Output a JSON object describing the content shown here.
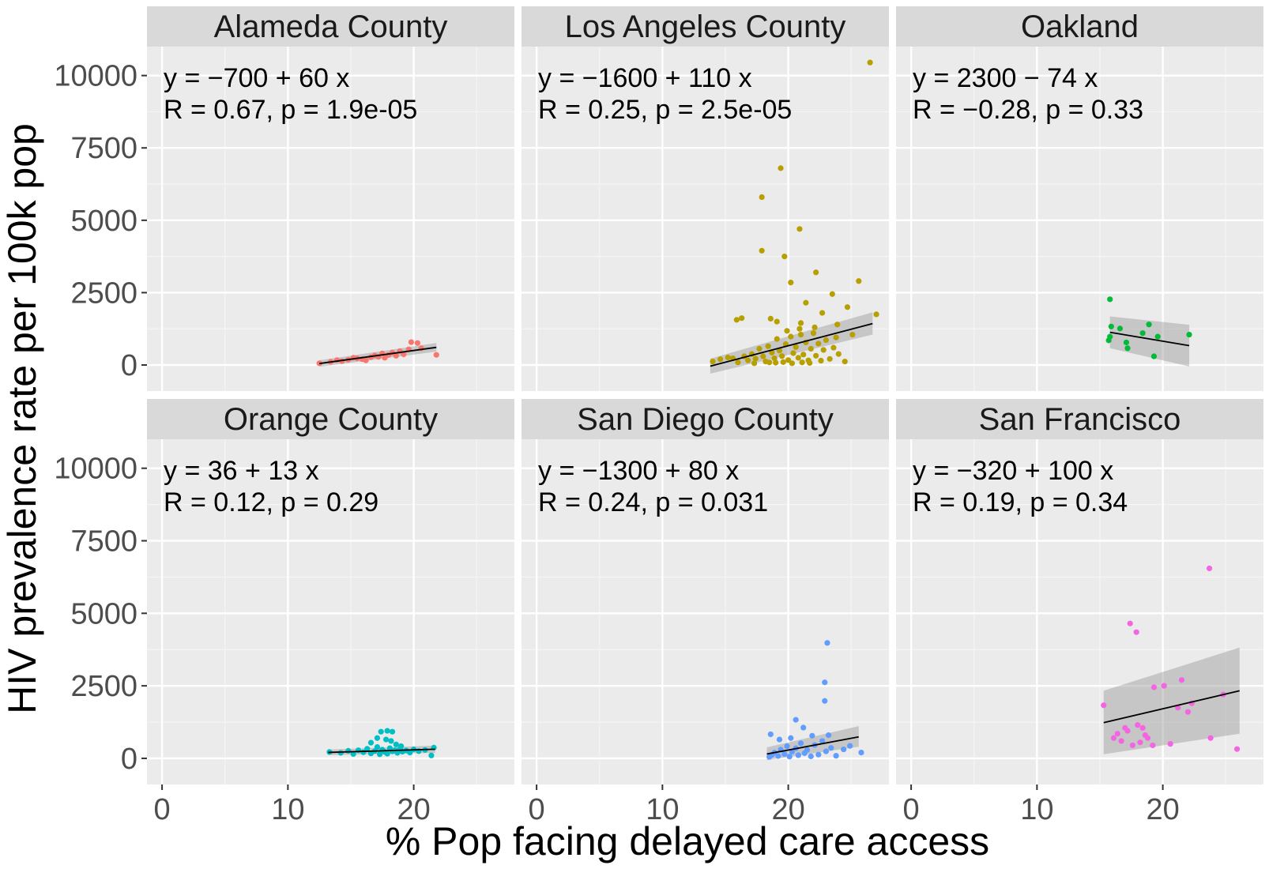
{
  "chart_data": {
    "type": "scatter",
    "xlabel": "% Pop facing delayed care access",
    "ylabel": "HIV prevalence rate per 100k pop",
    "xlim": [
      -1.2,
      28
    ],
    "ylim": [
      -900,
      11000
    ],
    "x_ticks": [
      0,
      10,
      20
    ],
    "y_ticks": [
      0,
      2500,
      5000,
      7500,
      10000
    ],
    "grid": true,
    "panels": [
      {
        "title": "Alameda County",
        "color": "#F8766D",
        "eq_line": "y = −700 + 60 x",
        "stat_line": "R = 0.67, p = 1.9e-05",
        "fit": {
          "x0": 12.5,
          "x1": 21.8,
          "y0": 50,
          "y1": 610
        },
        "band": {
          "lower0": -60,
          "lower1": 460,
          "upper0": 160,
          "upper1": 760
        },
        "points": [
          [
            12.5,
            60
          ],
          [
            13.4,
            110
          ],
          [
            13.9,
            170
          ],
          [
            14.3,
            130
          ],
          [
            14.8,
            180
          ],
          [
            15.2,
            250
          ],
          [
            15.5,
            230
          ],
          [
            15.9,
            200
          ],
          [
            16.2,
            160
          ],
          [
            16.6,
            270
          ],
          [
            16.9,
            330
          ],
          [
            17.2,
            280
          ],
          [
            17.5,
            400
          ],
          [
            17.7,
            250
          ],
          [
            18.0,
            350
          ],
          [
            18.3,
            430
          ],
          [
            18.6,
            320
          ],
          [
            18.9,
            480
          ],
          [
            19.2,
            370
          ],
          [
            19.6,
            540
          ],
          [
            19.8,
            790
          ],
          [
            20.3,
            760
          ],
          [
            20.6,
            580
          ],
          [
            21.8,
            350
          ]
        ]
      },
      {
        "title": "Los Angeles County",
        "color": "#B79F00",
        "eq_line": "y = −1600 + 110 x",
        "stat_line": "R = 0.25, p = 2.5e-05",
        "fit": {
          "x0": 13.8,
          "x1": 26.7,
          "y0": -40,
          "y1": 1430
        },
        "band": {
          "lower0": -300,
          "lower1": 1050,
          "upper0": 220,
          "upper1": 1820
        },
        "points": [
          [
            26.5,
            10450
          ],
          [
            19.4,
            6800
          ],
          [
            17.9,
            5800
          ],
          [
            20.9,
            4700
          ],
          [
            17.9,
            3950
          ],
          [
            19.7,
            3750
          ],
          [
            22.2,
            3200
          ],
          [
            23.5,
            2450
          ],
          [
            25.6,
            2900
          ],
          [
            20.2,
            2850
          ],
          [
            21.4,
            2150
          ],
          [
            24.7,
            2000
          ],
          [
            16.3,
            1620
          ],
          [
            15.9,
            1560
          ],
          [
            18.6,
            1600
          ],
          [
            22.7,
            1800
          ],
          [
            27.0,
            1750
          ],
          [
            19.1,
            1500
          ],
          [
            21.0,
            1450
          ],
          [
            23.9,
            1400
          ],
          [
            25.1,
            1050
          ],
          [
            14.0,
            120
          ],
          [
            14.6,
            200
          ],
          [
            15.2,
            260
          ],
          [
            15.6,
            230
          ],
          [
            16.0,
            90
          ],
          [
            16.5,
            300
          ],
          [
            16.8,
            160
          ],
          [
            17.1,
            380
          ],
          [
            17.4,
            220
          ],
          [
            17.7,
            560
          ],
          [
            18.0,
            300
          ],
          [
            18.2,
            120
          ],
          [
            18.4,
            650
          ],
          [
            18.7,
            430
          ],
          [
            18.9,
            230
          ],
          [
            19.1,
            900
          ],
          [
            19.3,
            500
          ],
          [
            19.5,
            310
          ],
          [
            19.8,
            720
          ],
          [
            20.0,
            170
          ],
          [
            20.2,
            980
          ],
          [
            20.4,
            410
          ],
          [
            20.6,
            620
          ],
          [
            20.8,
            250
          ],
          [
            21.0,
            1050
          ],
          [
            21.2,
            360
          ],
          [
            21.4,
            780
          ],
          [
            21.6,
            160
          ],
          [
            21.8,
            560
          ],
          [
            22.0,
            1100
          ],
          [
            22.2,
            320
          ],
          [
            22.4,
            740
          ],
          [
            22.6,
            150
          ],
          [
            22.8,
            520
          ],
          [
            23.0,
            860
          ],
          [
            23.3,
            210
          ],
          [
            23.6,
            600
          ],
          [
            24.0,
            380
          ],
          [
            24.5,
            120
          ],
          [
            19.0,
            80
          ],
          [
            19.6,
            100
          ],
          [
            20.3,
            60
          ],
          [
            21.1,
            90
          ],
          [
            21.7,
            70
          ],
          [
            18.5,
            90
          ],
          [
            17.3,
            60
          ],
          [
            20.9,
            1250
          ],
          [
            22.1,
            1300
          ],
          [
            19.9,
            1180
          ],
          [
            23.8,
            950
          ]
        ]
      },
      {
        "title": "Oakland",
        "color": "#00BA38",
        "eq_line": "y = 2300 − 74 x",
        "stat_line": "R = −0.28, p = 0.33",
        "fit": {
          "x0": 15.8,
          "x1": 22.1,
          "y0": 1130,
          "y1": 670
        },
        "band": {
          "lower0": 580,
          "lower1": -50,
          "upper0": 1680,
          "upper1": 1390
        },
        "points": [
          [
            15.8,
            2270
          ],
          [
            15.9,
            1330
          ],
          [
            16.6,
            1260
          ],
          [
            18.4,
            1100
          ],
          [
            18.9,
            1400
          ],
          [
            19.6,
            980
          ],
          [
            15.7,
            850
          ],
          [
            15.8,
            980
          ],
          [
            17.1,
            780
          ],
          [
            17.2,
            580
          ],
          [
            19.3,
            300
          ],
          [
            22.1,
            1050
          ]
        ]
      },
      {
        "title": "Orange County",
        "color": "#00BFC4",
        "eq_line": "y = 36 + 13 x",
        "stat_line": "R = 0.12, p = 0.29",
        "fit": {
          "x0": 13.2,
          "x1": 21.7,
          "y0": 205,
          "y1": 315
        },
        "band": {
          "lower0": 110,
          "lower1": 190,
          "upper0": 300,
          "upper1": 440
        },
        "points": [
          [
            13.3,
            220
          ],
          [
            14.2,
            190
          ],
          [
            14.8,
            260
          ],
          [
            15.2,
            150
          ],
          [
            15.6,
            280
          ],
          [
            16.0,
            210
          ],
          [
            16.3,
            330
          ],
          [
            16.6,
            170
          ],
          [
            16.9,
            250
          ],
          [
            17.1,
            390
          ],
          [
            17.3,
            140
          ],
          [
            17.5,
            300
          ],
          [
            17.7,
            220
          ],
          [
            17.9,
            160
          ],
          [
            18.1,
            350
          ],
          [
            18.3,
            240
          ],
          [
            18.5,
            280
          ],
          [
            18.7,
            190
          ],
          [
            18.9,
            320
          ],
          [
            19.1,
            230
          ],
          [
            19.4,
            270
          ],
          [
            19.7,
            200
          ],
          [
            20.0,
            310
          ],
          [
            20.4,
            250
          ],
          [
            20.9,
            290
          ],
          [
            21.6,
            370
          ],
          [
            21.4,
            100
          ],
          [
            17.4,
            920
          ],
          [
            17.9,
            950
          ],
          [
            18.3,
            920
          ],
          [
            17.1,
            700
          ],
          [
            17.8,
            650
          ],
          [
            18.2,
            600
          ],
          [
            16.6,
            540
          ],
          [
            18.6,
            480
          ],
          [
            19.0,
            420
          ]
        ]
      },
      {
        "title": "San Diego County",
        "color": "#619CFF",
        "eq_line": "y = −1300 + 80 x",
        "stat_line": "R = 0.24, p = 0.031",
        "fit": {
          "x0": 18.3,
          "x1": 25.6,
          "y0": 150,
          "y1": 740
        },
        "band": {
          "lower0": -60,
          "lower1": 400,
          "upper0": 380,
          "upper1": 1110
        },
        "points": [
          [
            23.1,
            3980
          ],
          [
            22.9,
            2620
          ],
          [
            22.9,
            1980
          ],
          [
            20.6,
            1330
          ],
          [
            21.2,
            1060
          ],
          [
            18.5,
            50
          ],
          [
            18.7,
            120
          ],
          [
            18.9,
            200
          ],
          [
            19.2,
            80
          ],
          [
            19.4,
            300
          ],
          [
            19.7,
            150
          ],
          [
            19.9,
            420
          ],
          [
            20.1,
            60
          ],
          [
            20.3,
            230
          ],
          [
            20.6,
            350
          ],
          [
            20.8,
            110
          ],
          [
            21.0,
            520
          ],
          [
            21.3,
            180
          ],
          [
            21.5,
            290
          ],
          [
            21.8,
            70
          ],
          [
            22.1,
            460
          ],
          [
            22.4,
            130
          ],
          [
            22.7,
            600
          ],
          [
            23.0,
            240
          ],
          [
            23.4,
            360
          ],
          [
            23.8,
            90
          ],
          [
            24.4,
            310
          ],
          [
            25.8,
            200
          ],
          [
            18.6,
            830
          ],
          [
            19.3,
            650
          ],
          [
            20.2,
            700
          ],
          [
            21.9,
            780
          ],
          [
            23.2,
            800
          ],
          [
            24.9,
            430
          ]
        ]
      },
      {
        "title": "San Francisco",
        "color": "#F564E3",
        "eq_line": "y = −320 + 100 x",
        "stat_line": "R = 0.19, p = 0.34",
        "fit": {
          "x0": 15.3,
          "x1": 26.1,
          "y0": 1230,
          "y1": 2330
        },
        "band": {
          "lower0": 140,
          "lower1": 850,
          "upper0": 2330,
          "upper1": 3820
        },
        "points": [
          [
            23.7,
            6550
          ],
          [
            17.4,
            4650
          ],
          [
            17.9,
            4350
          ],
          [
            15.3,
            1830
          ],
          [
            19.3,
            2450
          ],
          [
            20.1,
            2500
          ],
          [
            21.5,
            2700
          ],
          [
            22.3,
            1900
          ],
          [
            21.2,
            1750
          ],
          [
            24.8,
            2200
          ],
          [
            18.0,
            1150
          ],
          [
            18.4,
            1050
          ],
          [
            16.4,
            850
          ],
          [
            17.2,
            950
          ],
          [
            18.8,
            700
          ],
          [
            16.1,
            700
          ],
          [
            16.7,
            600
          ],
          [
            17.6,
            450
          ],
          [
            18.2,
            550
          ],
          [
            19.2,
            450
          ],
          [
            20.6,
            500
          ],
          [
            23.8,
            700
          ],
          [
            25.9,
            320
          ],
          [
            18.6,
            800
          ],
          [
            17.0,
            1050
          ],
          [
            22.0,
            1600
          ]
        ]
      }
    ]
  }
}
